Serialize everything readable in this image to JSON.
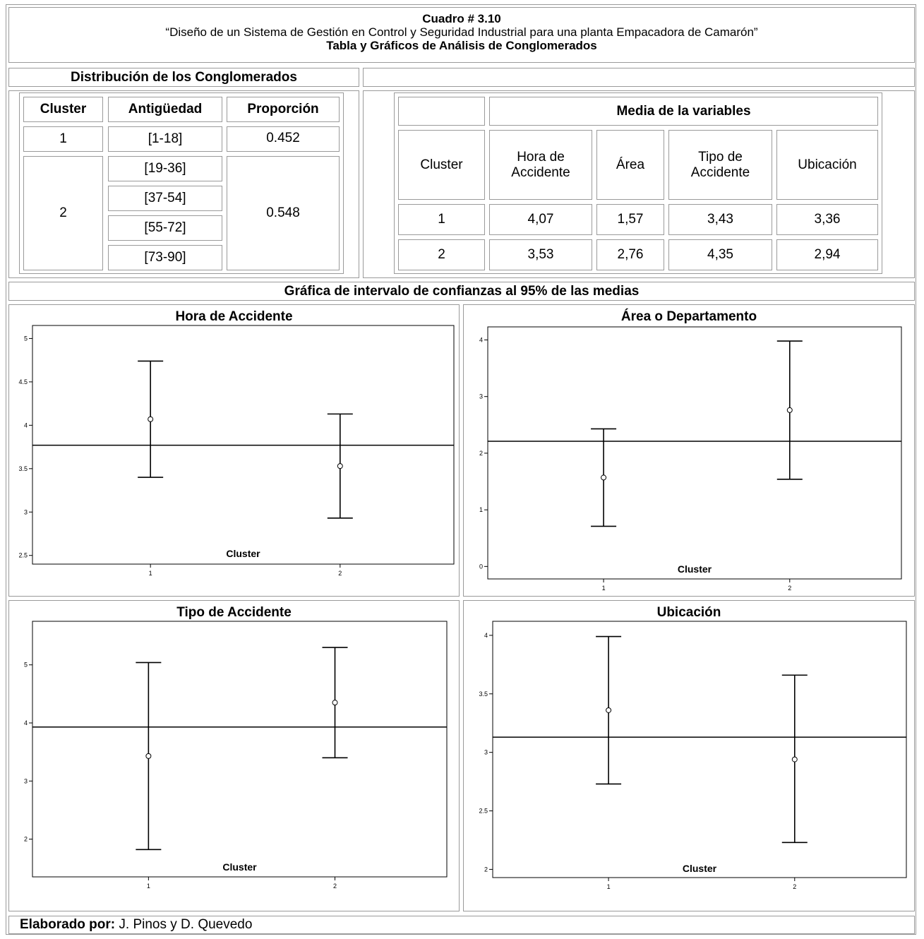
{
  "header": {
    "line1": "Cuadro # 3.10",
    "line2": "“Diseño de un Sistema de Gestión en Control y Seguridad Industrial para una planta Empacadora de Camarón”",
    "line3": "Tabla y Gráficos de  Análisis de Conglomerados"
  },
  "distribution": {
    "title": "Distribución de los Conglomerados",
    "columns": [
      "Cluster",
      "Antigüedad",
      "Proporción"
    ],
    "cluster1": {
      "cluster": "1",
      "range": "[1-18]",
      "proportion": "0.452"
    },
    "cluster2": {
      "cluster": "2",
      "ranges": [
        "[19-36]",
        "[37-54]",
        "[55-72]",
        "[73-90]"
      ],
      "proportion": "0.548"
    }
  },
  "means": {
    "group_header": "Media de la variables",
    "cluster_header": "Cluster",
    "columns": [
      "Hora de Accidente",
      "Área",
      "Tipo de Accidente",
      "Ubicación"
    ],
    "rows": [
      {
        "cluster": "1",
        "values": [
          "4,07",
          "1,57",
          "3,43",
          "3,36"
        ]
      },
      {
        "cluster": "2",
        "values": [
          "3,53",
          "2,76",
          "4,35",
          "2,94"
        ]
      }
    ]
  },
  "charts_section_title": "Gráfica de intervalo de confianzas al 95% de las medias",
  "chart_data": [
    {
      "type": "scatter",
      "title": "Hora de Accidente",
      "xlabel": "Cluster",
      "categories": [
        "1",
        "2"
      ],
      "means": [
        4.07,
        3.53
      ],
      "lower": [
        3.4,
        2.93
      ],
      "upper": [
        4.74,
        4.13
      ],
      "reference_line": 3.77,
      "yticks": [
        2.5,
        3,
        3.5,
        4,
        4.5,
        5
      ],
      "ytick_labels": [
        "2.5",
        "3",
        "3.5",
        "4",
        "4.5",
        "5"
      ],
      "ylim": [
        2.4,
        5.15
      ]
    },
    {
      "type": "scatter",
      "title": "Área o Departamento",
      "xlabel": "Cluster",
      "categories": [
        "1",
        "2"
      ],
      "means": [
        1.57,
        2.76
      ],
      "lower": [
        0.71,
        1.54
      ],
      "upper": [
        2.43,
        3.98
      ],
      "reference_line": 2.21,
      "yticks": [
        0,
        1,
        2,
        3,
        4
      ],
      "ytick_labels": [
        "0",
        "1",
        "2",
        "3",
        "4"
      ],
      "ylim": [
        -0.22,
        4.23
      ]
    },
    {
      "type": "scatter",
      "title": "Tipo de Accidente",
      "xlabel": "Cluster",
      "categories": [
        "1",
        "2"
      ],
      "means": [
        3.43,
        4.35
      ],
      "lower": [
        1.82,
        3.4
      ],
      "upper": [
        5.04,
        5.3
      ],
      "reference_line": 3.93,
      "yticks": [
        2,
        3,
        4,
        5
      ],
      "ytick_labels": [
        "2",
        "3",
        "4",
        "5"
      ],
      "ylim": [
        1.35,
        5.75
      ]
    },
    {
      "type": "scatter",
      "title": "Ubicación",
      "xlabel": "Cluster",
      "categories": [
        "1",
        "2"
      ],
      "means": [
        3.36,
        2.94
      ],
      "lower": [
        2.73,
        2.23
      ],
      "upper": [
        3.99,
        3.66
      ],
      "reference_line": 3.13,
      "yticks": [
        2,
        2.5,
        3,
        3.5,
        4
      ],
      "ytick_labels": [
        "2",
        "2.5",
        "3",
        "3.5",
        "4"
      ],
      "ylim": [
        1.93,
        4.12
      ]
    }
  ],
  "footer": {
    "label": "Elaborado por:",
    "authors": " J. Pinos y D. Quevedo"
  }
}
